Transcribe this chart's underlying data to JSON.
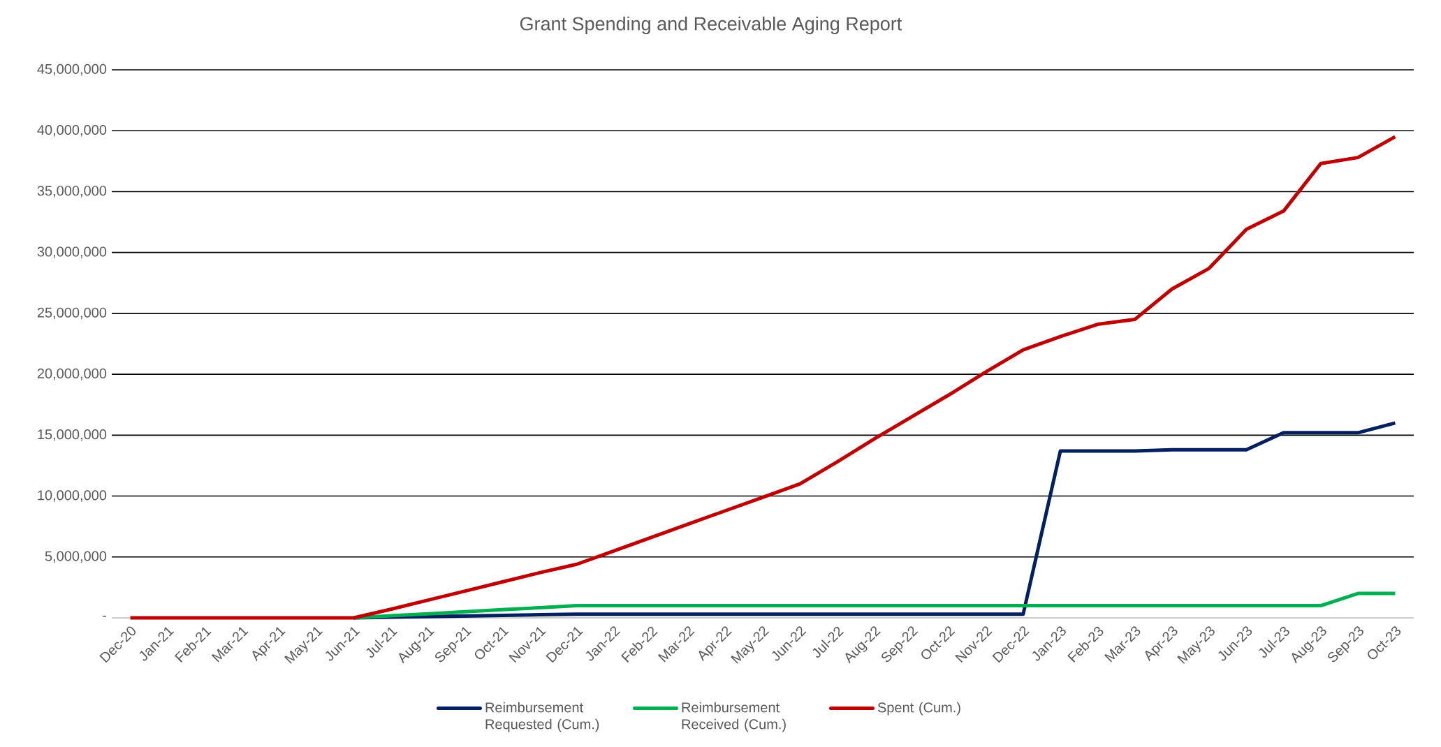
{
  "chart_data": {
    "type": "line",
    "title": "Grant Spending and Receivable Aging Report",
    "categories": [
      "Dec-20",
      "Jan-21",
      "Feb-21",
      "Mar-21",
      "Apr-21",
      "May-21",
      "Jun-21",
      "Jul-21",
      "Aug-21",
      "Sep-21",
      "Oct-21",
      "Nov-21",
      "Dec-21",
      "Jan-22",
      "Feb-22",
      "Mar-22",
      "Apr-22",
      "May-22",
      "Jun-22",
      "Jul-22",
      "Aug-22",
      "Sep-22",
      "Oct-22",
      "Nov-22",
      "Dec-22",
      "Jan-23",
      "Feb-23",
      "Mar-23",
      "Apr-23",
      "May-23",
      "Jun-23",
      "Jul-23",
      "Aug-23",
      "Sep-23",
      "Oct-23"
    ],
    "series": [
      {
        "name": "Reimbursement Requested (Cum.)",
        "color": "#002060",
        "values": [
          null,
          null,
          null,
          null,
          null,
          null,
          0,
          50000,
          100000,
          150000,
          200000,
          250000,
          300000,
          300000,
          300000,
          300000,
          300000,
          300000,
          300000,
          300000,
          300000,
          300000,
          300000,
          300000,
          300000,
          13700000,
          13700000,
          13700000,
          13800000,
          13800000,
          13800000,
          15200000,
          15200000,
          15200000,
          16000000
        ]
      },
      {
        "name": "Reimbursement Received (Cum.)",
        "color": "#00b050",
        "values": [
          null,
          null,
          null,
          null,
          null,
          null,
          0,
          170000,
          330000,
          500000,
          670000,
          830000,
          1000000,
          1000000,
          1000000,
          1000000,
          1000000,
          1000000,
          1000000,
          1000000,
          1000000,
          1000000,
          1000000,
          1000000,
          1000000,
          1000000,
          1000000,
          1000000,
          1000000,
          1000000,
          1000000,
          1000000,
          1000000,
          2000000,
          2000000
        ]
      },
      {
        "name": "Spent (Cum.)",
        "color": "#c00000",
        "values": [
          0,
          0,
          0,
          0,
          0,
          0,
          0,
          700000,
          1450000,
          2200000,
          2950000,
          3700000,
          4400000,
          5500000,
          6600000,
          7700000,
          8800000,
          9900000,
          11000000,
          12800000,
          14700000,
          16500000,
          18300000,
          20200000,
          22000000,
          23100000,
          24100000,
          24500000,
          27000000,
          28700000,
          31900000,
          33400000,
          37300000,
          37800000,
          39500000
        ]
      }
    ],
    "ylim": [
      0,
      45000000
    ],
    "yticks": [
      {
        "value": 0,
        "label": "-"
      },
      {
        "value": 5000000,
        "label": "5,000,000"
      },
      {
        "value": 10000000,
        "label": "10,000,000"
      },
      {
        "value": 15000000,
        "label": "15,000,000"
      },
      {
        "value": 20000000,
        "label": "20,000,000"
      },
      {
        "value": 25000000,
        "label": "25,000,000"
      },
      {
        "value": 30000000,
        "label": "30,000,000"
      },
      {
        "value": 35000000,
        "label": "35,000,000"
      },
      {
        "value": 40000000,
        "label": "40,000,000"
      },
      {
        "value": 45000000,
        "label": "45,000,000"
      }
    ],
    "grid": "y",
    "legend": "bottom"
  }
}
